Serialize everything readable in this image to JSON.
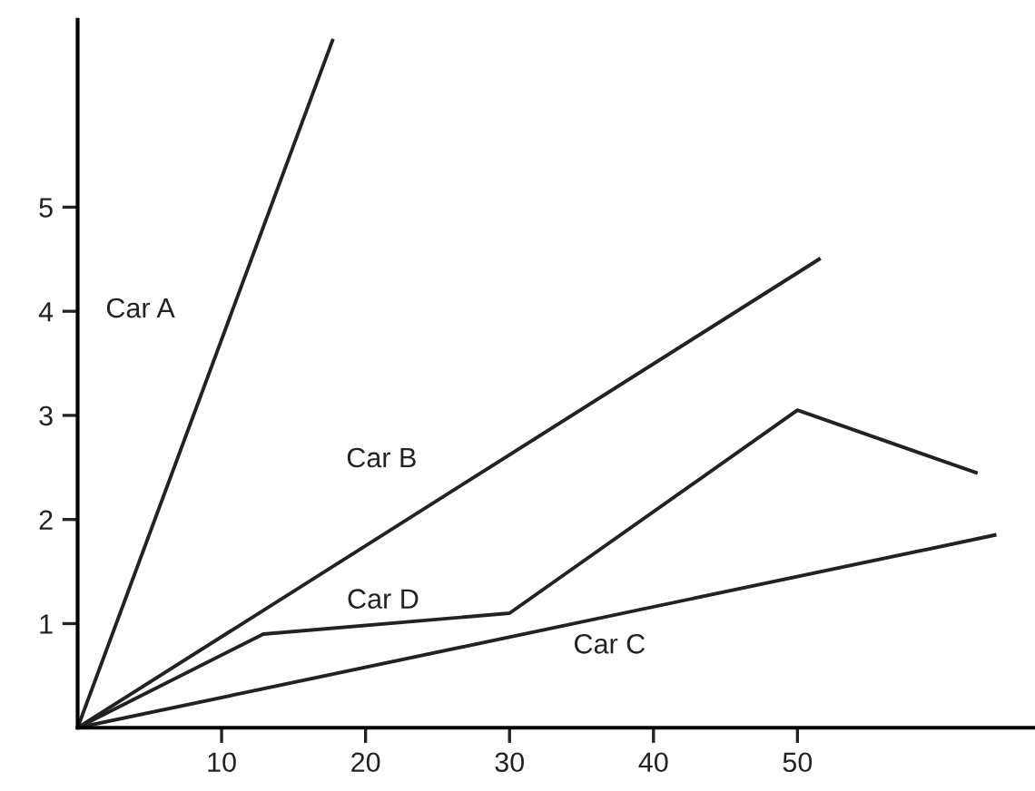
{
  "chart_data": {
    "type": "line",
    "series": [
      {
        "name": "Car A",
        "color": "#222222",
        "x": [
          0,
          17.7
        ],
        "values": [
          0,
          6.6
        ]
      },
      {
        "name": "Car B",
        "color": "#222222",
        "x": [
          0,
          51.5
        ],
        "values": [
          0,
          4.5
        ]
      },
      {
        "name": "Car D",
        "color": "#222222",
        "x": [
          0,
          12.9,
          30,
          50,
          62.4
        ],
        "values": [
          0,
          0.9,
          1.1,
          3.05,
          2.45
        ]
      },
      {
        "name": "Car C",
        "color": "#222222",
        "x": [
          0,
          63.7
        ],
        "values": [
          0,
          1.85
        ]
      }
    ],
    "xlim": [
      0,
      66.5
    ],
    "ylim": [
      0,
      6.8
    ],
    "xticks": [
      10,
      20,
      30,
      40,
      50
    ],
    "yticks": [
      1,
      2,
      3,
      4,
      5
    ],
    "grid": false,
    "legend": false,
    "marker": "none",
    "line_style": "solid"
  }
}
